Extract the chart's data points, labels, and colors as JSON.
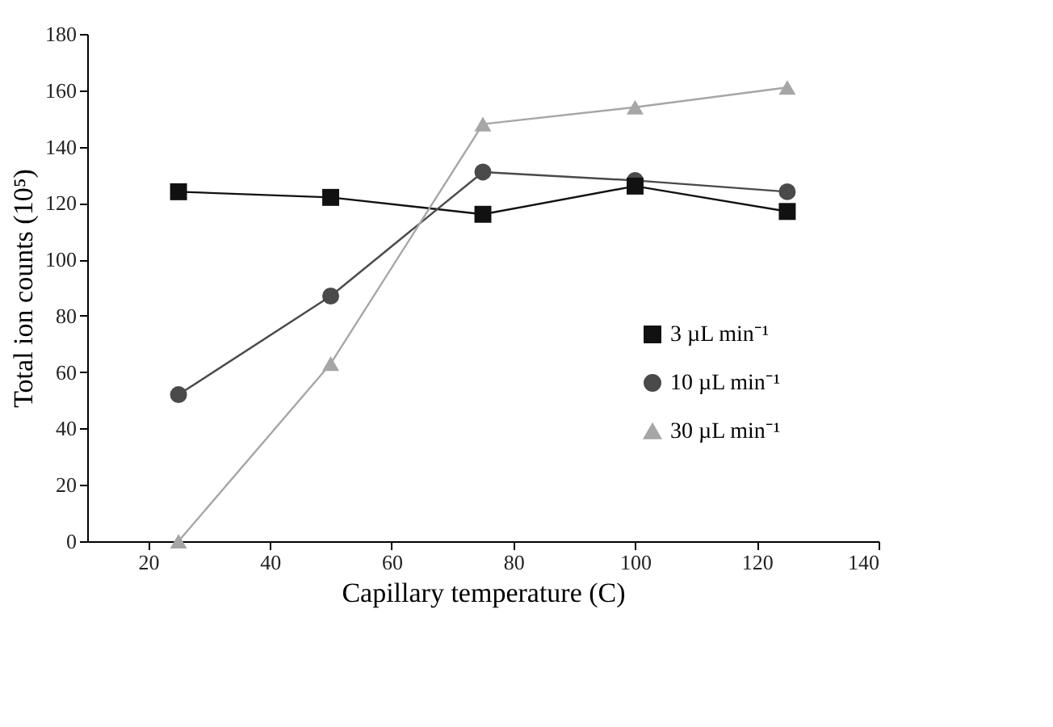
{
  "chart_data": {
    "type": "line",
    "xlabel": "Capillary temperature (C)",
    "ylabel": "Total ion counts (10⁵)",
    "x": [
      25,
      50,
      75,
      100,
      125
    ],
    "series": [
      {
        "name": "3 µL min⁻¹",
        "color": "#111111",
        "marker": "square",
        "values": [
          124,
          122,
          116,
          126,
          117
        ]
      },
      {
        "name": "10 µL min⁻¹",
        "color": "#4a4a4a",
        "marker": "circle",
        "values": [
          52,
          87,
          131,
          128,
          124
        ]
      },
      {
        "name": "30 µL min⁻¹",
        "color": "#a6a6a6",
        "marker": "triangle",
        "values": [
          0,
          63,
          148,
          154,
          161
        ]
      }
    ],
    "xlim": [
      10,
      140
    ],
    "xticks": [
      20,
      40,
      60,
      80,
      100,
      120,
      140
    ],
    "ylim": [
      0,
      180
    ],
    "yticks": [
      0,
      20,
      40,
      60,
      80,
      100,
      120,
      140,
      160,
      180
    ],
    "grid": false,
    "legend": "bottom right",
    "line_style": "solid"
  }
}
